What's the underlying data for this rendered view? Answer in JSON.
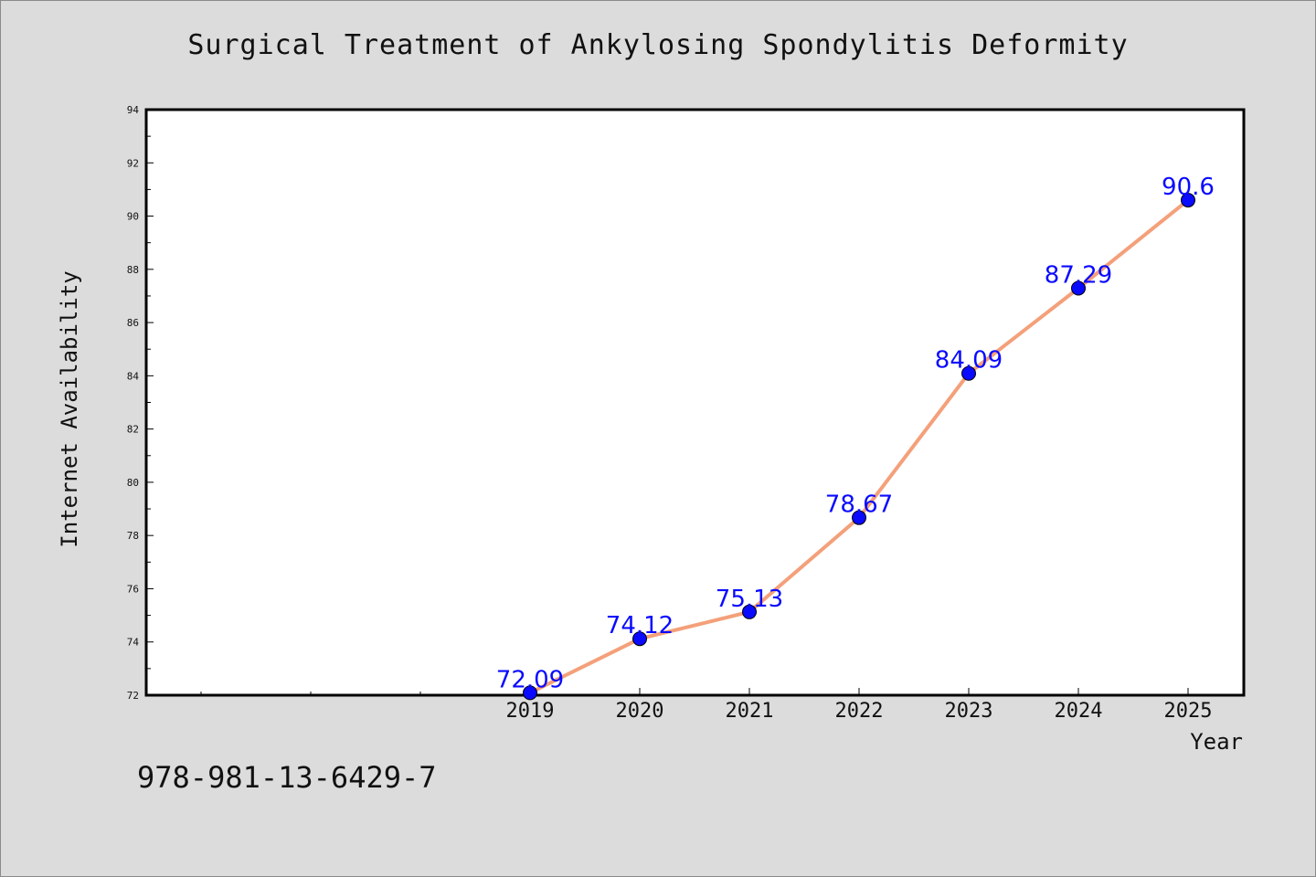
{
  "chart_data": {
    "type": "line",
    "title": "Surgical Treatment of Ankylosing Spondylitis Deformity",
    "xlabel": "Year",
    "ylabel": "Internet Availability",
    "categories": [
      "2019",
      "2020",
      "2021",
      "2022",
      "2023",
      "2024",
      "2025"
    ],
    "values": [
      72.09,
      74.12,
      75.13,
      78.67,
      84.09,
      87.29,
      90.6
    ],
    "value_labels": [
      "72.09",
      "74.12",
      "75.13",
      "78.67",
      "84.09",
      "87.29",
      "90.6"
    ],
    "ylim": [
      72,
      94
    ],
    "yticks": [
      72,
      74,
      76,
      78,
      80,
      82,
      84,
      86,
      88,
      90,
      92,
      94
    ],
    "grid": false,
    "line_color": "#f4a07a",
    "marker_color": "#0a0aff",
    "label_color": "#0a0aff"
  },
  "footer": {
    "isbn": "978-981-13-6429-7"
  }
}
